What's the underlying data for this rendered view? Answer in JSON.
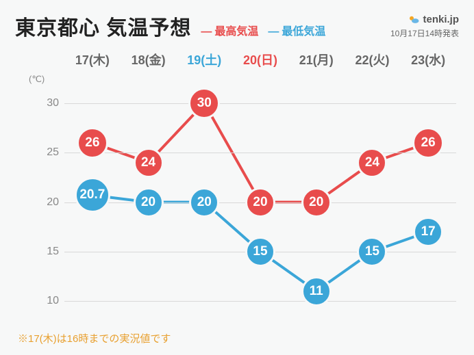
{
  "title": "東京都心 気温予想",
  "legend": {
    "high": "最高気温",
    "low": "最低気温"
  },
  "brand": "tenki.jp",
  "timestamp": "10月17日14時発表",
  "footnote": "※17(木)は16時までの実況値です",
  "chart": {
    "type": "line",
    "y_unit": "(℃)",
    "ylim": [
      8,
      32
    ],
    "yticks": [
      10,
      15,
      20,
      25,
      30
    ],
    "grid_color": "#d8d8d8",
    "background_color": "#f7f8f8",
    "days": [
      {
        "label": "17(木)",
        "type": "weekday"
      },
      {
        "label": "18(金)",
        "type": "weekday"
      },
      {
        "label": "19(土)",
        "type": "sat"
      },
      {
        "label": "20(日)",
        "type": "sun"
      },
      {
        "label": "21(月)",
        "type": "weekday"
      },
      {
        "label": "22(火)",
        "type": "weekday"
      },
      {
        "label": "23(水)",
        "type": "weekday"
      }
    ],
    "series": {
      "high": {
        "color": "#e84c4c",
        "line_width": 4,
        "marker_border": 3,
        "marker_fontsize": 19,
        "values": [
          26,
          24,
          30,
          20,
          20,
          24,
          26
        ],
        "labels": [
          "26",
          "24",
          "30",
          "20",
          "20",
          "24",
          "26"
        ],
        "marker_size": [
          46,
          44,
          46,
          44,
          44,
          44,
          46
        ],
        "label_side": [
          "left",
          "below",
          "above",
          "below",
          "below",
          "below",
          "right"
        ]
      },
      "low": {
        "color": "#3ba6d8",
        "line_width": 4,
        "marker_border": 3,
        "marker_fontsize": 19,
        "values": [
          20.7,
          20,
          20,
          15,
          11,
          15,
          17
        ],
        "labels": [
          "20.7",
          "20",
          "20",
          "15",
          "11",
          "15",
          "17"
        ],
        "marker_size": [
          52,
          44,
          44,
          44,
          44,
          44,
          44
        ],
        "label_side": [
          "left",
          "below",
          "below",
          "below",
          "below",
          "below",
          "right"
        ]
      }
    }
  }
}
